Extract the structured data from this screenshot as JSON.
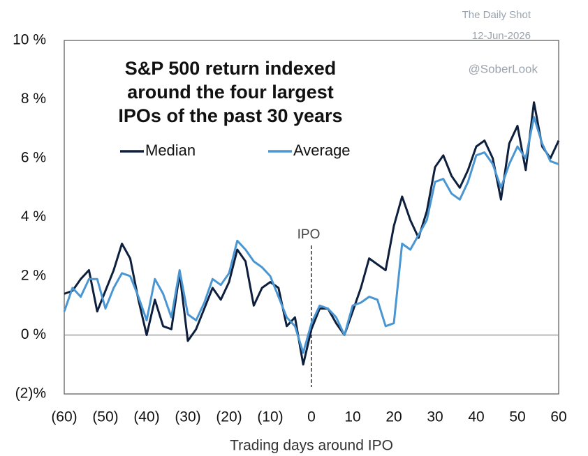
{
  "chart_data": {
    "type": "line",
    "title": [
      "S&P 500 return indexed",
      "around the four largest",
      "IPOs of the past 30 years"
    ],
    "xlabel": "Trading days around IPO",
    "annotations": [
      "IPO",
      "The Daily Shot",
      "12-Jun-2026",
      "@SoberLook"
    ],
    "x": [
      -60,
      -58,
      -56,
      -54,
      -52,
      -50,
      -48,
      -46,
      -44,
      -42,
      -40,
      -38,
      -36,
      -34,
      -32,
      -30,
      -28,
      -26,
      -24,
      -22,
      -20,
      -18,
      -16,
      -14,
      -12,
      -10,
      -8,
      -6,
      -4,
      -2,
      0,
      2,
      4,
      6,
      8,
      10,
      12,
      14,
      16,
      18,
      20,
      22,
      24,
      26,
      28,
      30,
      32,
      34,
      36,
      38,
      40,
      42,
      44,
      46,
      48,
      50,
      52,
      54,
      56,
      58,
      60
    ],
    "series": [
      {
        "name": "Median",
        "color": "#0d1f3c",
        "values": [
          1.4,
          1.5,
          1.9,
          2.2,
          0.8,
          1.5,
          2.2,
          3.1,
          2.6,
          1.2,
          0.0,
          1.2,
          0.3,
          0.2,
          2.1,
          -0.2,
          0.2,
          0.9,
          1.6,
          1.2,
          1.8,
          2.9,
          2.5,
          1.0,
          1.6,
          1.8,
          1.6,
          0.3,
          0.6,
          -1.0,
          0.2,
          0.9,
          0.9,
          0.4,
          0.0,
          0.8,
          1.6,
          2.6,
          2.4,
          2.2,
          3.7,
          4.7,
          3.9,
          3.3,
          4.2,
          5.7,
          6.1,
          5.4,
          5.0,
          5.6,
          6.4,
          6.6,
          6.0,
          4.6,
          6.5,
          7.1,
          5.6,
          7.9,
          6.4,
          6.0,
          6.6
        ]
      },
      {
        "name": "Average",
        "color": "#4a96d2",
        "values": [
          0.8,
          1.6,
          1.3,
          1.9,
          1.9,
          0.9,
          1.6,
          2.1,
          2.0,
          1.3,
          0.5,
          1.9,
          1.4,
          0.6,
          2.2,
          0.7,
          0.5,
          1.1,
          1.9,
          1.7,
          2.1,
          3.2,
          2.9,
          2.5,
          2.3,
          2.0,
          1.3,
          0.6,
          0.3,
          -0.6,
          0.4,
          1.0,
          0.9,
          0.6,
          0.0,
          1.0,
          1.1,
          1.3,
          1.2,
          0.3,
          0.4,
          3.1,
          2.9,
          3.4,
          3.9,
          5.2,
          5.3,
          4.8,
          4.6,
          5.2,
          6.1,
          6.2,
          5.8,
          5.0,
          5.8,
          6.4,
          6.0,
          7.4,
          6.5,
          5.9,
          5.8
        ]
      }
    ],
    "xlim": [
      -60,
      60
    ],
    "xticks": [
      {
        "value": -60,
        "label": "(60)"
      },
      {
        "value": -50,
        "label": "(50)"
      },
      {
        "value": -40,
        "label": "(40)"
      },
      {
        "value": -30,
        "label": "(30)"
      },
      {
        "value": -20,
        "label": "(20)"
      },
      {
        "value": -10,
        "label": "(10)"
      },
      0,
      10,
      20,
      30,
      40,
      50,
      60
    ],
    "ylim": [
      -2,
      10
    ],
    "yticks": [
      {
        "value": -2,
        "label": "(2)%"
      },
      {
        "value": 0,
        "label": "0 %"
      },
      {
        "value": 2,
        "label": "2 %"
      },
      {
        "value": 4,
        "label": "4 %"
      },
      {
        "value": 6,
        "label": "6 %"
      },
      {
        "value": 8,
        "label": "8 %"
      },
      {
        "value": 10,
        "label": "10 %"
      }
    ],
    "legend": "upper left"
  }
}
